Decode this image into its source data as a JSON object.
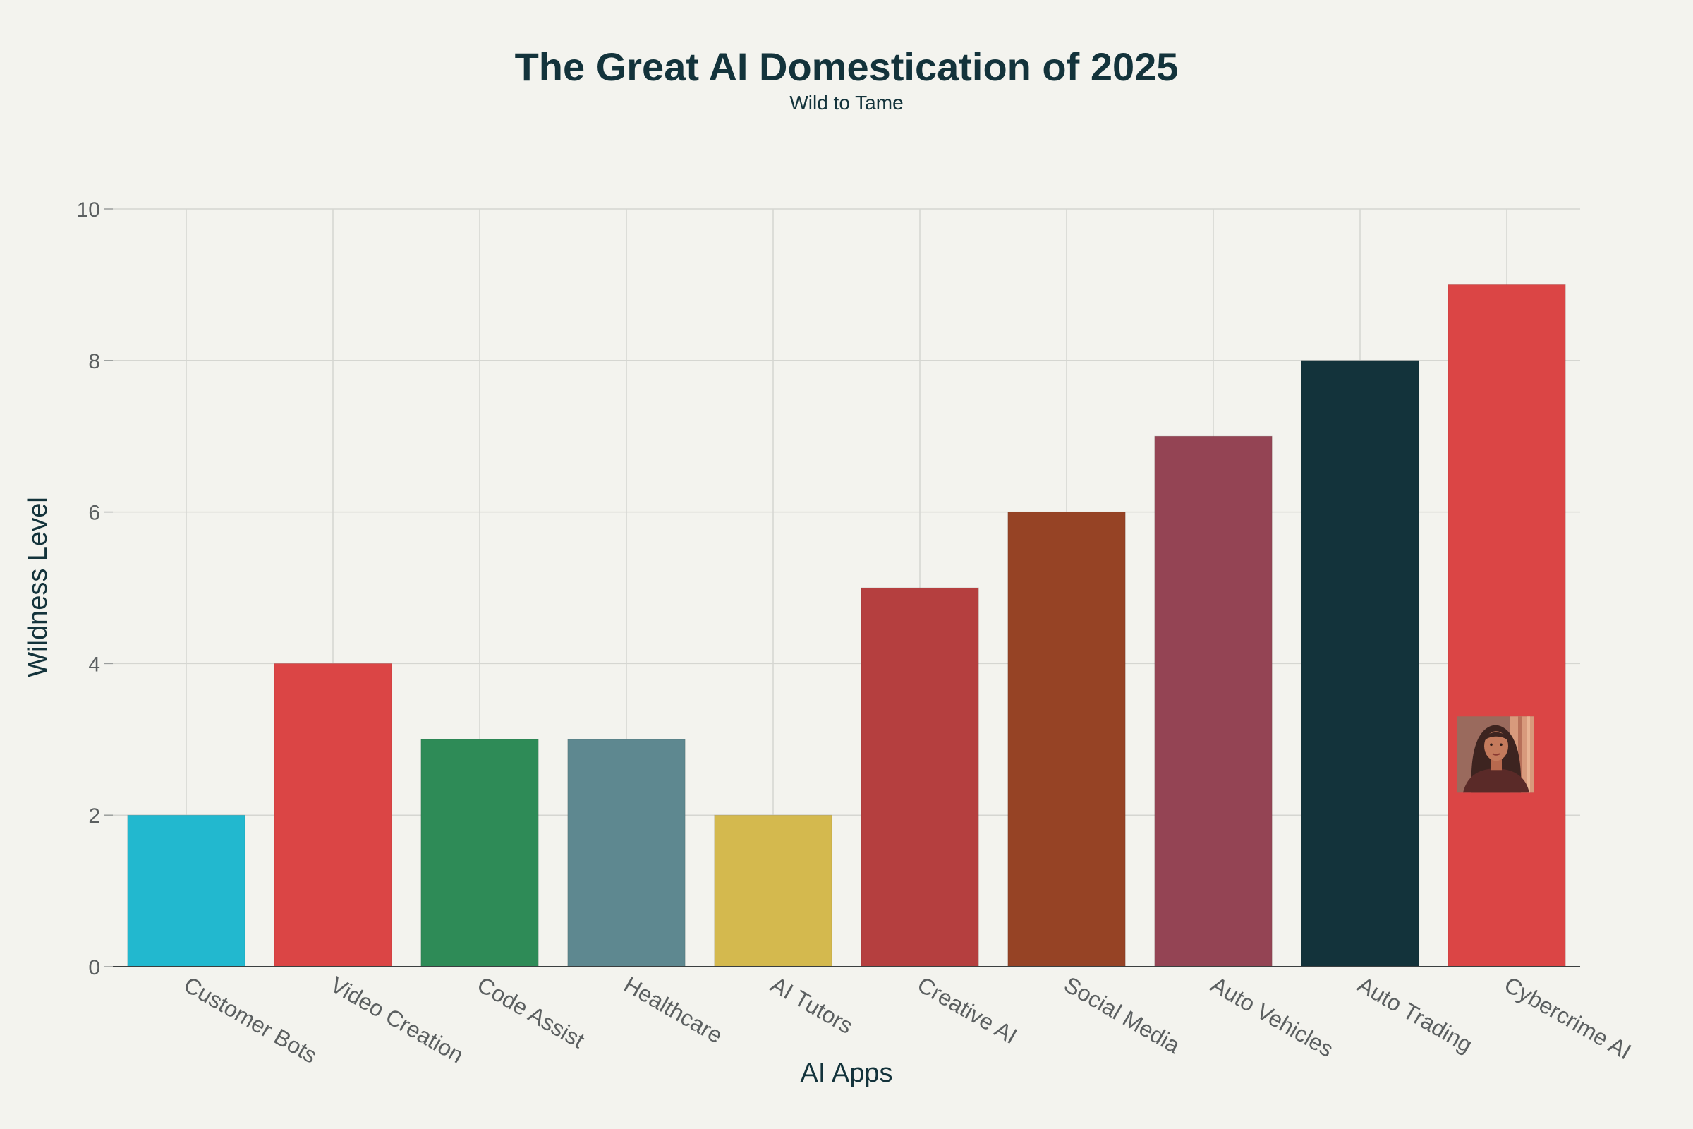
{
  "chart_data": {
    "type": "bar",
    "title": "The Great AI Domestication of 2025",
    "subtitle": "Wild to Tame",
    "xlabel": "AI Apps",
    "ylabel": "Wildness Level",
    "ylim": [
      0,
      10
    ],
    "yticks": [
      0,
      2,
      4,
      6,
      8,
      10
    ],
    "grid": true,
    "categories": [
      "Customer Bots",
      "Video Creation",
      "Code Assist",
      "Healthcare",
      "AI Tutors",
      "Creative AI",
      "Social Media",
      "Auto Vehicles",
      "Auto Trading",
      "Cybercrime AI"
    ],
    "values": [
      2,
      4,
      3,
      3,
      2,
      5,
      6,
      7,
      8,
      9
    ],
    "colors": [
      "#22b8cf",
      "#db4545",
      "#2e8b57",
      "#5e8890",
      "#d4b94e",
      "#b53f3f",
      "#964325",
      "#944454",
      "#13333b",
      "#db4545"
    ],
    "annotations": [
      {
        "type": "portrait-image",
        "category": "Cybercrime AI",
        "y_center": 2.8
      }
    ]
  }
}
